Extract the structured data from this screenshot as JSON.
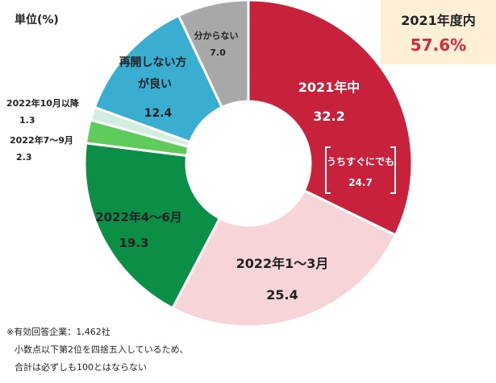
{
  "unit_label": "単位(%)",
  "callout": {
    "title": "2021年度内",
    "value": "57.6%"
  },
  "notes": [
    "※有効回答企業：1,462社",
    "小数点以下第2位を四捨五入しているため、",
    "合計は必ずしも100とはならない"
  ],
  "chart_data": {
    "type": "pie",
    "donut": true,
    "unit": "%",
    "slices": [
      {
        "label": "2021年中",
        "value": 32.2,
        "value_text": "32.2",
        "color": "#c8213c"
      },
      {
        "label": "2022年1～3月",
        "value": 25.4,
        "value_text": "25.4",
        "color": "#f6d4d7"
      },
      {
        "label": "2022年4～6月",
        "value": 19.3,
        "value_text": "19.3",
        "color": "#0b8f47"
      },
      {
        "label": "2022年7～9月",
        "value": 2.3,
        "value_text": "2.3",
        "color": "#5ecb5a"
      },
      {
        "label": "2022年10月以降",
        "value": 1.3,
        "value_text": "1.3",
        "color": "#d2eee0"
      },
      {
        "label": "再開しない方が良い",
        "value": 12.4,
        "value_text": "12.4",
        "color": "#3aaed0"
      },
      {
        "label": "分からない",
        "value": 7.0,
        "value_text": "7.0",
        "color": "#a8a8a8"
      }
    ],
    "sub_annotation": {
      "label": "うちすぐにでも",
      "value": "24.7"
    }
  }
}
